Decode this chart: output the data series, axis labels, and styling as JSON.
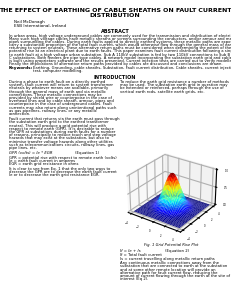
{
  "title_line1": "THE EFFECT OF EARTHING OF CABLE SHEATHS ON FAULT CURRENT",
  "title_line2": "DISTRIBUTION",
  "author_name": "Neil McDonagh",
  "author_affil": "ESB International, Ireland",
  "abstract_title": "ABSTRACT",
  "abstract_text": "In urban areas, high voltage underground cables are commonly used for the transmission and distribution of electricity.\nMany such high voltage cables have metallic sheaths or screens surrounding the conductors, and/or armour and metallic\npipes surrounding the cables. During earth faults applied to directly earthed systems, these metallic paths are exposed to\ncarry a substantial proportion of the total fault current, which would otherwise flow through the general mass of earth, while\nreturning to system neutrals. These alternative return paths must be considered when determining the extent of the grid\npotential rise at an electrical plant due to earth faults. This paper examines fault current distribution following a single phase\nto earth fault at a high voltage urban substation. Sub A 110kV substation is fed by two 110kV connections to Sub B and Sub\nC substations. Both feeders are pipe type cables. A network model incorporating the substation earth grid and cable sheaths\nis built using proprietary software and the results presented. Current injection tests are carried out to verify modelled results.\nFinally the implications of alternative return paths provided by cables are discussed and conclusions are drawn.",
  "keywords_label": "Keywords:",
  "keywords_text": "Earthing, Grounding, cable sheaths, Substation, Fault current distribution, Cable sheaths, current injection\ntest, computer modelling.",
  "intro_title": "INTRODUCTION",
  "intro_left_p1": "During a phase to earth fault on a directly earthed\nsystem, fault current will return to system transformer\nneutrals by whatever means are available, primarily\nthrough the general mass of earth and via metallic\nconnections. These metallic connections may be\nprovided by shield wire or counterpoise in the case of\noverhead lines and by cable sheath, armour, pipes and\ncounterpoise in the case of underground cables. Fault\ncurrents may also return along unintentional paths such\nas gas pipelines, railway lines, or any metallic\nconnection.",
  "intro_left_p2": "Fault current that returns via the earth must pass through\nthe substation earth grid to the earthed transformer\nneutral. This will produce a grid potential rise with\nrespect to remote earth (GPR). It is desirable to reduce\nthe GPR at substations during earth faults for a number\nof reasons, principally to reduce touch and step voltage\nhazards that may exist at the substation, but also to\nminimise transfer voltage hazards along other utilities\nsuch as telecommunications circuits, railway lines, gas\npipe lines, etc.",
  "eq1_label": "GPR (volts) = Ie * EGR",
  "eq1_ref": "(Equation 1)",
  "eq1_desc1": "GPR = potential rise with respect to remote earth (volts)",
  "eq1_desc2": "Ie = earth fault current in amperes",
  "eq1_desc3": "EGR = earth grid resistance in ohms",
  "eq1_note": "It is clear to see from Eq. 1 that the only two ways to\ndecrease the GPR are to decrease the earth fault current\nIe or to decrease the earth grid resistance EGR.",
  "intro_right_p1": "To reduce the earth grid resistance a number of methods\nmay be used. The substation earth grid in question may\nbe extended or reinforced, perhaps through the use of\nvertical earth rods, satellite earth grids, etc.",
  "fig_caption": "Fig. 1 Grid Potential Rise Plot",
  "eq2_label": "If = Ie + Is",
  "eq2_ref": "(Equation 2)",
  "eq2_desc1": "If = Total fault current",
  "eq2_desc2": "Is = current travelling along metallic return paths",
  "eq2_note": "Any continuous metallic connections away from the\nsubstation that are connected to earth at the substation\nand at some other remote location will provide an\nalternative path for fault current flow, reducing the\namount of current flowing through the earth at the site of\ninterest (Eq 2).",
  "bg_color": "#ffffff",
  "text_color": "#000000"
}
